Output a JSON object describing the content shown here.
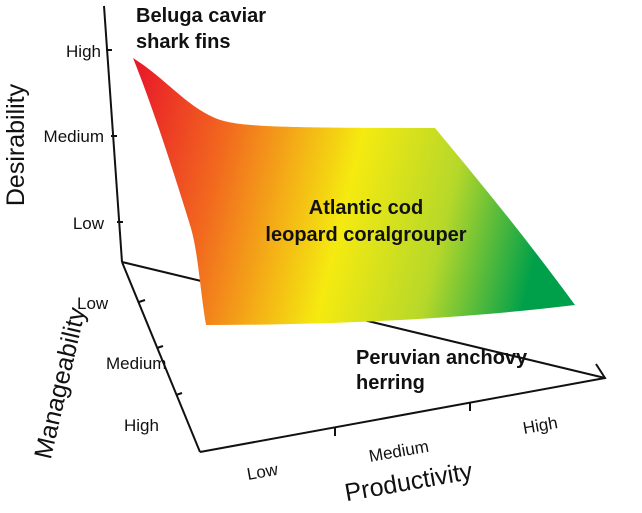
{
  "axes": {
    "desirability": {
      "label": "Desirability",
      "ticks": [
        "Low",
        "Medium",
        "High"
      ]
    },
    "manageability": {
      "label": "Manageability",
      "ticks": [
        "Low",
        "Medium",
        "High"
      ]
    },
    "productivity": {
      "label": "Productivity",
      "ticks": [
        "Low",
        "Medium",
        "High"
      ]
    }
  },
  "annotations": [
    {
      "lines": [
        "Beluga caviar",
        "shark fins"
      ]
    },
    {
      "lines": [
        "Atlantic cod",
        "leopard coralgrouper"
      ]
    },
    {
      "lines": [
        "Peruvian anchovy",
        "herring"
      ]
    }
  ]
}
